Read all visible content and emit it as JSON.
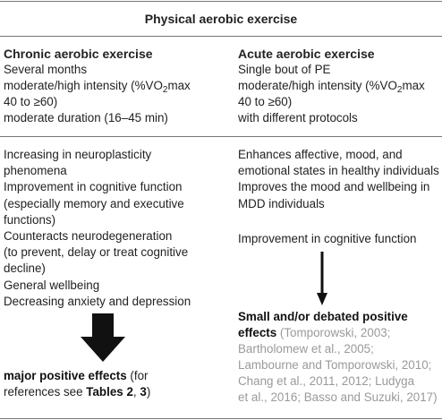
{
  "table": {
    "title": "Physical aerobic exercise",
    "chronic": {
      "heading": "Chronic aerobic exercise",
      "protocol": [
        "Several months",
        "moderate/high intensity (%VO",
        "2",
        "max",
        "40 to ≥60)",
        "moderate duration (16–45 min)"
      ],
      "effects": [
        "Increasing in neuroplasticity",
        "phenomena",
        "Improvement in cognitive function",
        "(especially memory and executive",
        "functions)",
        "Counteracts neurodegeneration",
        "(to prevent, delay or treat cognitive",
        "decline)",
        "General wellbeing",
        "Decreasing anxiety and depression"
      ],
      "conclusion_bold": "major positive effects",
      "conclusion_rest": " (for",
      "conclusion_line2_prefix": "references see ",
      "conclusion_tables": "Tables 2",
      "conclusion_sep": ", ",
      "conclusion_table3": "3",
      "conclusion_end": ")"
    },
    "acute": {
      "heading": "Acute aerobic exercise",
      "protocol": [
        "Single bout of PE",
        "moderate/high intensity (%VO",
        "2",
        "max",
        "40 to ≥60)",
        "with different protocols"
      ],
      "effects": [
        "Enhances affective, mood, and",
        "emotional states in healthy individuals",
        "Improves the mood and wellbeing in",
        "MDD individuals",
        "Improvement in cognitive function"
      ],
      "conclusion_line1": "Small and/or debated positive",
      "conclusion_line2": "effects",
      "references": [
        " (Tomporowski, 2003;",
        "Bartholomew et al., 2005;",
        "Lambourne and Tomporowski, 2010;",
        "Chang et al., 2011, 2012; Ludyga",
        "et al., 2016; Basso and Suzuki, 2017)"
      ]
    }
  },
  "colors": {
    "rule": "#777777",
    "arrow": "#111111",
    "reference": "#9a9a9a"
  }
}
